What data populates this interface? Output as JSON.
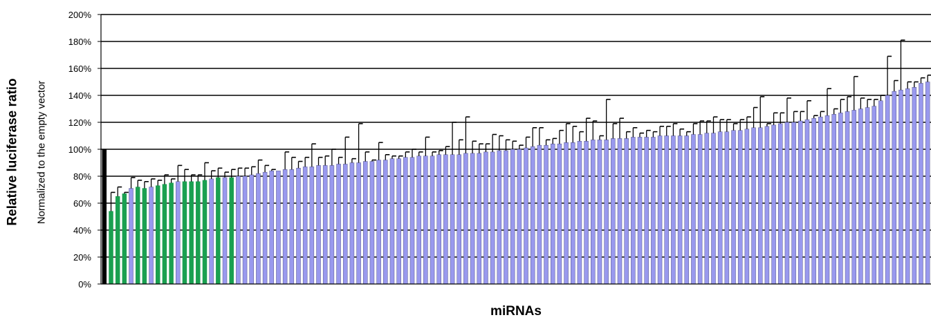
{
  "chart_data": {
    "type": "bar",
    "ylabel": "Relative luciferase ratio",
    "ylabel_sub": "Normalized to the empty vector",
    "xlabel": "miRNAs",
    "ylim": [
      0,
      200
    ],
    "y_ticks": [
      "0%",
      "20%",
      "40%",
      "60%",
      "80%",
      "100%",
      "120%",
      "140%",
      "160%",
      "180%",
      "200%"
    ],
    "grid": true,
    "colors": {
      "control": "#000000",
      "green": "#1aa050",
      "blue": "#9999ee",
      "grid": "#000000"
    },
    "series": [
      {
        "values": [
          100,
          54,
          65,
          67,
          71,
          72,
          71,
          72,
          73,
          74,
          75,
          76,
          76,
          76,
          76,
          77,
          78,
          79,
          79,
          79,
          80,
          80,
          81,
          82,
          83,
          84,
          84,
          85,
          85,
          86,
          87,
          87,
          88,
          88,
          88,
          89,
          89,
          90,
          90,
          91,
          91,
          92,
          92,
          93,
          93,
          94,
          94,
          95,
          95,
          95,
          96,
          96,
          96,
          96,
          97,
          97,
          97,
          98,
          98,
          99,
          99,
          100,
          100,
          101,
          102,
          103,
          103,
          104,
          104,
          105,
          105,
          106,
          106,
          107,
          107,
          107,
          108,
          108,
          108,
          109,
          109,
          109,
          109,
          110,
          110,
          110,
          110,
          110,
          111,
          111,
          112,
          112,
          113,
          113,
          114,
          114,
          115,
          116,
          116,
          117,
          118,
          119,
          120,
          120,
          121,
          122,
          123,
          124,
          125,
          126,
          127,
          128,
          129,
          130,
          131,
          132,
          136,
          140,
          143,
          144,
          145,
          146,
          149,
          150
        ],
        "errors": [
          0,
          14,
          7,
          1,
          8,
          5,
          5,
          6,
          4,
          7,
          3,
          12,
          9,
          5,
          5,
          13,
          6,
          7,
          4,
          6,
          6,
          6,
          6,
          10,
          5,
          1,
          0,
          13,
          9,
          5,
          7,
          17,
          6,
          7,
          12,
          5,
          20,
          3,
          29,
          7,
          1,
          13,
          4,
          2,
          2,
          4,
          6,
          3,
          14,
          3,
          3,
          6,
          24,
          11,
          27,
          9,
          7,
          6,
          13,
          11,
          8,
          6,
          3,
          8,
          14,
          13,
          4,
          4,
          10,
          14,
          12,
          7,
          17,
          14,
          3,
          30,
          11,
          15,
          5,
          7,
          3,
          5,
          4,
          7,
          7,
          9,
          5,
          3,
          8,
          10,
          9,
          12,
          9,
          9,
          5,
          8,
          9,
          15,
          23,
          2,
          9,
          8,
          18,
          8,
          7,
          14,
          2,
          4,
          20,
          4,
          10,
          11,
          25,
          8,
          6,
          5,
          4,
          29,
          8,
          37,
          5,
          4,
          4,
          5
        ],
        "colors": [
          "control",
          "green",
          "green",
          "green",
          "blue",
          "green",
          "green",
          "blue",
          "green",
          "green",
          "green",
          "blue",
          "green",
          "green",
          "green",
          "green",
          "blue",
          "green",
          "blue",
          "green",
          "blue",
          "blue",
          "blue",
          "blue",
          "blue",
          "blue",
          "blue",
          "blue",
          "blue",
          "blue",
          "blue",
          "blue",
          "blue",
          "blue",
          "blue",
          "blue",
          "blue",
          "blue",
          "blue",
          "blue",
          "blue",
          "blue",
          "blue",
          "blue",
          "blue",
          "blue",
          "blue",
          "blue",
          "blue",
          "blue",
          "blue",
          "blue",
          "blue",
          "blue",
          "blue",
          "blue",
          "blue",
          "blue",
          "blue",
          "blue",
          "blue",
          "blue",
          "blue",
          "blue",
          "blue",
          "blue",
          "blue",
          "blue",
          "blue",
          "blue",
          "blue",
          "blue",
          "blue",
          "blue",
          "blue",
          "blue",
          "blue",
          "blue",
          "blue",
          "blue",
          "blue",
          "blue",
          "blue",
          "blue",
          "blue",
          "blue",
          "blue",
          "blue",
          "blue",
          "blue",
          "blue",
          "blue",
          "blue",
          "blue",
          "blue",
          "blue",
          "blue",
          "blue",
          "blue",
          "blue",
          "blue",
          "blue",
          "blue",
          "blue",
          "blue",
          "blue",
          "blue",
          "blue",
          "blue",
          "blue",
          "blue",
          "blue",
          "blue",
          "blue",
          "blue",
          "blue",
          "blue",
          "blue",
          "blue",
          "blue",
          "blue",
          "blue",
          "blue",
          "blue"
        ]
      }
    ]
  }
}
